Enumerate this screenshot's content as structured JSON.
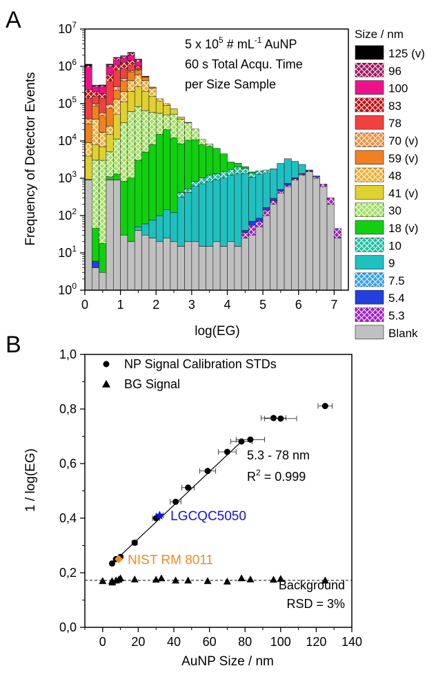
{
  "panel_a": {
    "letter": "A",
    "annotation": [
      "5 x 10",
      "5",
      " # mL",
      "-1",
      " AuNP",
      "60 s Total Acqu. Time",
      "per Size Sample"
    ],
    "legend_title": "Size / nm",
    "chart_data": {
      "type": "bar",
      "stacked": true,
      "xlabel": "log(EG)",
      "ylabel": "Frequency of Detector Events",
      "xlim": [
        0,
        7.4
      ],
      "ylim": [
        1,
        10000000
      ],
      "yscale": "log",
      "x_ticks": [
        "0",
        "1",
        "2",
        "3",
        "4",
        "5",
        "6",
        "7"
      ],
      "y_ticks": [
        {
          "base": "10",
          "exp": "0"
        },
        {
          "base": "10",
          "exp": "1"
        },
        {
          "base": "10",
          "exp": "2"
        },
        {
          "base": "10",
          "exp": "3"
        },
        {
          "base": "10",
          "exp": "4"
        },
        {
          "base": "10",
          "exp": "5"
        },
        {
          "base": "10",
          "exp": "6"
        },
        {
          "base": "10",
          "exp": "7"
        }
      ],
      "legend": "right",
      "bin_width": 0.2,
      "x": [
        0.1,
        0.3,
        0.5,
        0.7,
        0.9,
        1.1,
        1.3,
        1.5,
        1.7,
        1.9,
        2.1,
        2.3,
        2.5,
        2.7,
        2.9,
        3.1,
        3.3,
        3.5,
        3.7,
        3.9,
        4.1,
        4.3,
        4.5,
        4.7,
        4.9,
        5.1,
        5.3,
        5.5,
        5.7,
        5.9,
        6.1,
        6.3,
        6.5,
        6.7,
        6.9,
        7.1
      ],
      "series": [
        {
          "name": "Blank",
          "color": "#c0c0c0",
          "hatch": false,
          "values": [
            900,
            4,
            3,
            900,
            900,
            30,
            20,
            40,
            30,
            25,
            20,
            25,
            20,
            15,
            20,
            20,
            15,
            15,
            20,
            15,
            20,
            15,
            25,
            30,
            50,
            100,
            200,
            400,
            600,
            900,
            1200,
            1500,
            1000,
            600,
            200,
            25
          ]
        },
        {
          "name": "5.3",
          "color": "#a020c0",
          "hatch": true,
          "values": [
            0,
            0,
            0,
            0,
            0,
            0,
            0,
            0,
            0,
            0,
            0,
            0,
            0,
            0,
            0,
            0,
            0,
            0,
            0,
            0,
            0,
            0,
            10,
            25,
            20,
            40,
            50,
            50,
            50,
            70,
            80,
            100,
            90,
            100,
            100,
            20
          ]
        },
        {
          "name": "5.4",
          "color": "#2040e0",
          "hatch": false,
          "values": [
            0,
            2,
            0,
            0,
            0,
            0,
            0,
            0,
            0,
            0,
            0,
            0,
            0,
            0,
            0,
            0,
            0,
            0,
            0,
            0,
            0,
            0,
            5,
            15,
            15,
            25,
            40,
            50,
            80,
            60,
            60,
            60,
            60,
            0,
            0,
            0
          ]
        },
        {
          "name": "7.5",
          "color": "#30a0f0",
          "hatch": true,
          "values": [
            0,
            0,
            0,
            0,
            0,
            0,
            0,
            0,
            0,
            0,
            0,
            0,
            0,
            0,
            0,
            0,
            0,
            0,
            0,
            0,
            0,
            0,
            0,
            0,
            0,
            0,
            0,
            0,
            0,
            0,
            0,
            0,
            0,
            0,
            0,
            0
          ]
        },
        {
          "name": "9",
          "color": "#20c0c0",
          "hatch": false,
          "values": [
            0,
            0,
            0,
            0,
            0,
            0,
            0,
            10,
            30,
            50,
            80,
            120,
            100,
            300,
            400,
            600,
            700,
            800,
            900,
            1000,
            1200,
            1300,
            1300,
            1000,
            1200,
            1200,
            1500,
            2000,
            2600,
            1800,
            1000,
            0,
            0,
            0,
            0,
            0
          ]
        },
        {
          "name": "10",
          "color": "#20c0a0",
          "hatch": true,
          "values": [
            0,
            0,
            0,
            0,
            0,
            0,
            0,
            0,
            0,
            0,
            0,
            0,
            0,
            100,
            100,
            200,
            300,
            400,
            400,
            500,
            500,
            700,
            500,
            300,
            300,
            300,
            0,
            0,
            0,
            0,
            0,
            0,
            0,
            0,
            0,
            0
          ]
        },
        {
          "name": "18 (v)",
          "color": "#10d010",
          "hatch": false,
          "values": [
            30,
            40,
            15,
            200,
            400,
            800,
            1000,
            3000,
            5000,
            8000,
            15000,
            20000,
            12000,
            8000,
            10000,
            10000,
            7000,
            6000,
            5000,
            3000,
            1000,
            500,
            200,
            100,
            0,
            0,
            0,
            0,
            0,
            0,
            0,
            0,
            0,
            0,
            0,
            0
          ]
        },
        {
          "name": "30",
          "color": "#a0e060",
          "hatch": true,
          "values": [
            0,
            3000,
            3000,
            4000,
            10000,
            30000,
            60000,
            80000,
            60000,
            50000,
            40000,
            30000,
            40000,
            30000,
            20000,
            10000,
            3000,
            1000,
            0,
            0,
            0,
            0,
            0,
            0,
            0,
            0,
            0,
            0,
            0,
            0,
            0,
            0,
            0,
            0,
            0,
            0
          ]
        },
        {
          "name": "41 (v)",
          "color": "#e0d030",
          "hatch": false,
          "values": [
            3000,
            5000,
            4000,
            10000,
            40000,
            80000,
            150000,
            200000,
            150000,
            100000,
            60000,
            40000,
            20000,
            5000,
            1000,
            0,
            0,
            0,
            0,
            0,
            0,
            0,
            0,
            0,
            0,
            0,
            0,
            0,
            0,
            0,
            0,
            0,
            0,
            0,
            0,
            0
          ]
        },
        {
          "name": "48",
          "color": "#f0b030",
          "hatch": true,
          "values": [
            5000,
            30000,
            10000,
            10000,
            80000,
            100000,
            200000,
            300000,
            200000,
            100000,
            20000,
            10000,
            0,
            0,
            0,
            0,
            0,
            0,
            0,
            0,
            0,
            0,
            0,
            0,
            0,
            0,
            0,
            0,
            0,
            0,
            0,
            0,
            0,
            0,
            0,
            0
          ]
        },
        {
          "name": "59 (v)",
          "color": "#f08020",
          "hatch": false,
          "values": [
            20000,
            50000,
            30000,
            50000,
            100000,
            200000,
            300000,
            200000,
            100000,
            20000,
            0,
            0,
            0,
            0,
            0,
            0,
            0,
            0,
            0,
            0,
            0,
            0,
            0,
            0,
            0,
            0,
            0,
            0,
            0,
            0,
            0,
            0,
            0,
            0,
            0,
            0
          ]
        },
        {
          "name": "70 (v)",
          "color": "#f09040",
          "hatch": true,
          "values": [
            10000,
            10000,
            10000,
            20000,
            50000,
            60000,
            50000,
            30000,
            10000,
            0,
            0,
            0,
            0,
            0,
            0,
            0,
            0,
            0,
            0,
            0,
            0,
            0,
            0,
            0,
            0,
            0,
            0,
            0,
            0,
            0,
            0,
            0,
            0,
            0,
            0,
            0
          ]
        },
        {
          "name": "78",
          "color": "#f04040",
          "hatch": false,
          "values": [
            100000,
            60000,
            80000,
            300000,
            500000,
            400000,
            300000,
            100000,
            20000,
            0,
            0,
            0,
            0,
            0,
            0,
            0,
            0,
            0,
            0,
            0,
            0,
            0,
            0,
            0,
            0,
            0,
            0,
            0,
            0,
            0,
            0,
            0,
            0,
            0,
            0,
            0
          ]
        },
        {
          "name": "83",
          "color": "#c01010",
          "hatch": true,
          "values": [
            100000,
            50000,
            50000,
            200000,
            300000,
            400000,
            400000,
            100000,
            0,
            0,
            0,
            0,
            0,
            0,
            0,
            0,
            0,
            0,
            0,
            0,
            0,
            0,
            0,
            0,
            0,
            0,
            0,
            0,
            0,
            0,
            0,
            0,
            0,
            0,
            0,
            0
          ]
        },
        {
          "name": "100",
          "color": "#f0108c",
          "hatch": false,
          "values": [
            700000,
            80000,
            100000,
            400000,
            400000,
            400000,
            500000,
            300000,
            0,
            0,
            0,
            0,
            0,
            0,
            0,
            0,
            0,
            0,
            0,
            0,
            0,
            0,
            0,
            0,
            0,
            0,
            0,
            0,
            0,
            0,
            0,
            0,
            0,
            0,
            0,
            0
          ]
        },
        {
          "name": "96",
          "color": "#a01860",
          "hatch": true,
          "values": [
            100000,
            20000,
            20000,
            100000,
            200000,
            200000,
            300000,
            200000,
            0,
            0,
            0,
            0,
            0,
            0,
            0,
            0,
            0,
            0,
            0,
            0,
            0,
            0,
            0,
            0,
            0,
            0,
            0,
            0,
            0,
            0,
            0,
            0,
            0,
            0,
            0,
            0
          ]
        },
        {
          "name": "125 (v)",
          "color": "#000000",
          "hatch": false,
          "values": [
            100000,
            5000,
            10000,
            50000,
            50000,
            50000,
            100000,
            50000,
            0,
            0,
            0,
            0,
            0,
            0,
            0,
            0,
            0,
            0,
            0,
            0,
            0,
            0,
            0,
            0,
            0,
            0,
            0,
            0,
            0,
            0,
            0,
            0,
            0,
            0,
            0,
            0
          ]
        }
      ],
      "legend_order": [
        "125 (v)",
        "96",
        "100",
        "83",
        "78",
        "70 (v)",
        "59 (v)",
        "48",
        "41 (v)",
        "30",
        "18 (v)",
        "10",
        "9",
        "7.5",
        "5.4",
        "5.3",
        "Blank"
      ]
    }
  },
  "panel_b": {
    "letter": "B",
    "fit_text": "5.3 - 78 nm",
    "r2_prefix": "R",
    "r2_exp": "2",
    "r2_value": " = 0.999",
    "background_label": "Background",
    "rsd_label": "RSD = 3%",
    "chart_data": {
      "type": "scatter",
      "xlabel": "AuNP Size / nm",
      "ylabel": "1 / log(EG)",
      "xlim": [
        -10,
        140
      ],
      "ylim": [
        0.0,
        1.0
      ],
      "x_ticks": [
        "0",
        "20",
        "40",
        "60",
        "80",
        "100",
        "120",
        "140"
      ],
      "y_ticks": [
        "0,0",
        "0,2",
        "0,4",
        "0,6",
        "0,8",
        "1,0"
      ],
      "legend": "top-left",
      "series": [
        {
          "name": "NP Signal Calibration STDs",
          "marker": "circle",
          "color": "#000000",
          "points": [
            {
              "x": 5.3,
              "y": 0.234,
              "xerr": 0.5
            },
            {
              "x": 7.5,
              "y": 0.25,
              "xerr": 0.7
            },
            {
              "x": 10,
              "y": 0.258,
              "xerr": 1
            },
            {
              "x": 18,
              "y": 0.31,
              "xerr": 1.5
            },
            {
              "x": 30,
              "y": 0.4,
              "xerr": 2
            },
            {
              "x": 41,
              "y": 0.46,
              "xerr": 3
            },
            {
              "x": 48,
              "y": 0.512,
              "xerr": 3.5
            },
            {
              "x": 59,
              "y": 0.573,
              "xerr": 4.5
            },
            {
              "x": 70,
              "y": 0.643,
              "xerr": 5
            },
            {
              "x": 78,
              "y": 0.681,
              "xerr": 6
            },
            {
              "x": 83,
              "y": 0.688,
              "xerr": 8
            },
            {
              "x": 96,
              "y": 0.767,
              "xerr": 7
            },
            {
              "x": 100,
              "y": 0.765,
              "xerr": 9
            },
            {
              "x": 125,
              "y": 0.811,
              "xerr": 4
            }
          ]
        },
        {
          "name": "BG Signal",
          "marker": "triangle",
          "color": "#000000",
          "points": [
            {
              "x": 0,
              "y": 0.17
            },
            {
              "x": 5.3,
              "y": 0.17
            },
            {
              "x": 5.4,
              "y": 0.165
            },
            {
              "x": 7.5,
              "y": 0.172
            },
            {
              "x": 9,
              "y": 0.175
            },
            {
              "x": 10,
              "y": 0.18
            },
            {
              "x": 18,
              "y": 0.176
            },
            {
              "x": 30,
              "y": 0.175
            },
            {
              "x": 33,
              "y": 0.18
            },
            {
              "x": 41,
              "y": 0.172
            },
            {
              "x": 48,
              "y": 0.172
            },
            {
              "x": 59,
              "y": 0.17
            },
            {
              "x": 70,
              "y": 0.168
            },
            {
              "x": 78,
              "y": 0.18
            },
            {
              "x": 83,
              "y": 0.176
            },
            {
              "x": 96,
              "y": 0.175
            },
            {
              "x": 100,
              "y": 0.178
            },
            {
              "x": 125,
              "y": 0.172
            }
          ]
        },
        {
          "name": "LGCQC5050",
          "marker": "star",
          "color": "#1010ee",
          "points": [
            {
              "x": 32,
              "y": 0.41,
              "xerr": 2
            }
          ]
        },
        {
          "name": "NIST RM 8011",
          "marker": "diamond",
          "color": "#f08a20",
          "points": [
            {
              "x": 9,
              "y": 0.25,
              "xerr": 0.8
            }
          ]
        }
      ],
      "fit_line": {
        "x": [
          5.3,
          78
        ],
        "y": [
          0.234,
          0.681
        ]
      },
      "background_line": {
        "y": 0.172,
        "x": [
          -10,
          140
        ]
      },
      "labels": [
        {
          "text": "LGCQC5050",
          "color": "#1010ee",
          "x": 35,
          "y": 0.41
        },
        {
          "text": "NIST RM 8011",
          "color": "#f08a20",
          "x": 11,
          "y": 0.25
        }
      ]
    }
  }
}
